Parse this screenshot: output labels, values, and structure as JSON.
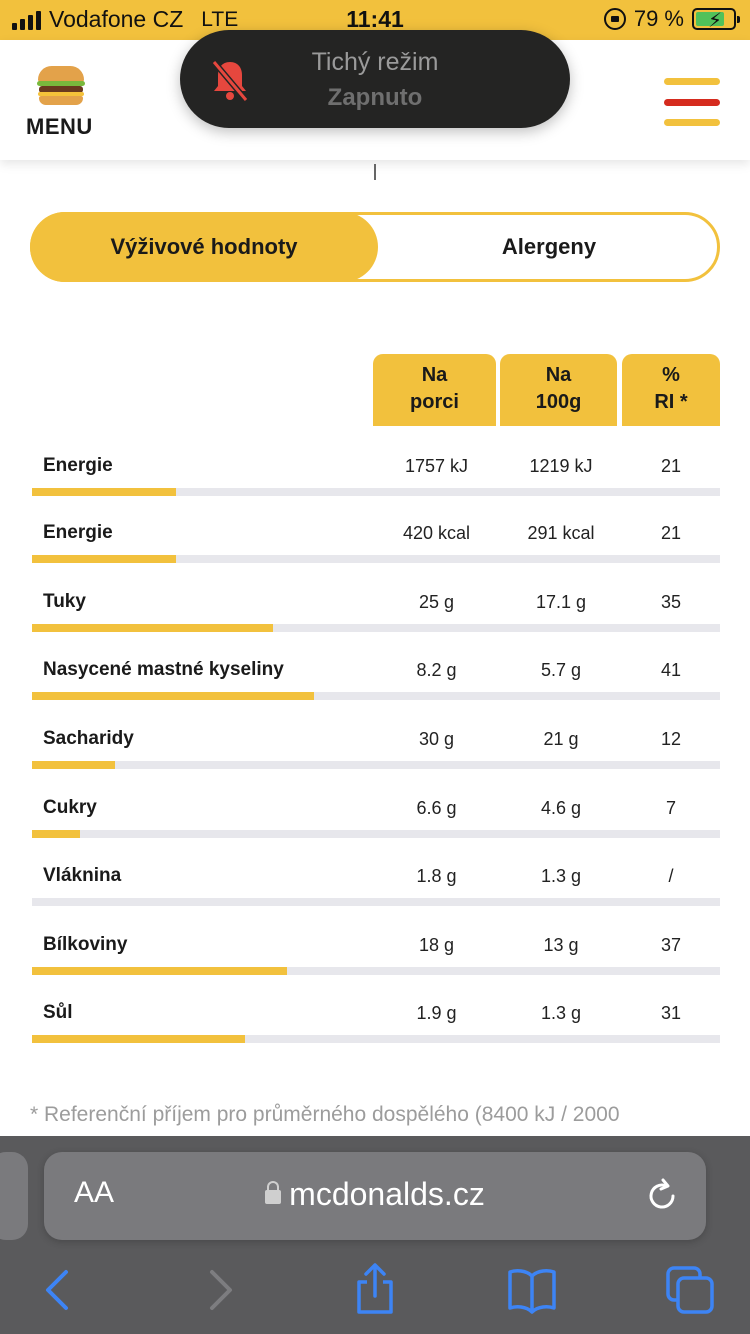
{
  "status_bar": {
    "carrier": "Vodafone CZ",
    "network": "LTE",
    "time": "11:41",
    "battery": "79 %",
    "battery_level": 0.79
  },
  "header": {
    "menu_label": "MENU"
  },
  "toast": {
    "title": "Tichý režim",
    "subtitle": "Zapnuto",
    "icon": "bell-slash-icon"
  },
  "tabs": [
    {
      "label": "Výživové hodnoty",
      "active": true
    },
    {
      "label": "Alergeny",
      "active": false
    }
  ],
  "table": {
    "headers": [
      {
        "line1": "Na",
        "line2": "porci"
      },
      {
        "line1": "Na",
        "line2": "100g"
      },
      {
        "line1": "%",
        "line2": "RI *"
      }
    ],
    "rows": [
      {
        "label": "Energie",
        "portion": "1757 kJ",
        "per100": "1219 kJ",
        "ri": "21",
        "ri_fraction": 0.21
      },
      {
        "label": "Energie",
        "portion": "420 kcal",
        "per100": "291 kcal",
        "ri": "21",
        "ri_fraction": 0.21
      },
      {
        "label": "Tuky",
        "portion": "25 g",
        "per100": "17.1 g",
        "ri": "35",
        "ri_fraction": 0.35
      },
      {
        "label": "Nasycené mastné kyseliny",
        "portion": "8.2 g",
        "per100": "5.7 g",
        "ri": "41",
        "ri_fraction": 0.41
      },
      {
        "label": "Sacharidy",
        "portion": "30 g",
        "per100": "21 g",
        "ri": "12",
        "ri_fraction": 0.12
      },
      {
        "label": "Cukry",
        "portion": "6.6 g",
        "per100": "4.6 g",
        "ri": "7",
        "ri_fraction": 0.07
      },
      {
        "label": "Vláknina",
        "portion": "1.8 g",
        "per100": "1.3 g",
        "ri": "/",
        "ri_fraction": 0
      },
      {
        "label": "Bílkoviny",
        "portion": "18 g",
        "per100": "13 g",
        "ri": "37",
        "ri_fraction": 0.37
      },
      {
        "label": "Sůl",
        "portion": "1.9 g",
        "per100": "1.3 g",
        "ri": "31",
        "ri_fraction": 0.31
      }
    ]
  },
  "footnote": "* Referenční příjem pro průměrného dospělého (8400 kJ / 2000",
  "safari": {
    "aa_label": "AA",
    "url": "mcdonalds.cz"
  },
  "colors": {
    "accent": "#f2c13d",
    "red": "#d52b1e",
    "track": "#e7e7ec"
  }
}
